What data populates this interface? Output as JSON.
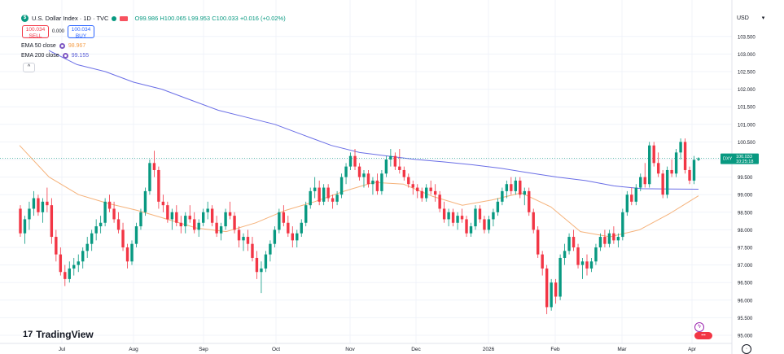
{
  "header": {
    "symbol_title": "U.S. Dollar Index · 1D · TVC",
    "open": "O99.986",
    "high": "H100.065",
    "low": "L99.953",
    "close": "C100.033",
    "change": "+0.016 (+0.02%)"
  },
  "trade": {
    "sell_price": "100.034",
    "sell_label": "SELL",
    "spread": "0.000",
    "buy_price": "100.034",
    "buy_label": "BUY"
  },
  "indicators": {
    "ema50_label": "EMA 50 close",
    "ema50_value": "98.967",
    "ema50_color": "#f5b27a",
    "ema200_label": "EMA 200 close",
    "ema200_value": "99.155",
    "ema200_color": "#6a6ee6"
  },
  "price_axis": {
    "currency": "USD",
    "last_symbol": "DXY",
    "last_price": "100.033",
    "countdown": "10:25:18"
  },
  "branding": {
    "logo_text": "TradingView"
  },
  "chart_data": {
    "type": "candlestick",
    "ylim": [
      94.85,
      104.0
    ],
    "y_ticks": [
      "95.000",
      "95.500",
      "96.000",
      "96.500",
      "97.000",
      "97.500",
      "98.000",
      "98.500",
      "99.000",
      "99.500",
      "100.000",
      "100.500",
      "101.000",
      "101.500",
      "102.000",
      "102.500",
      "103.000",
      "103.500"
    ],
    "x_ticks": [
      "Jul",
      "Aug",
      "Sep",
      "Oct",
      "Nov",
      "Dec",
      "2026",
      "Feb",
      "Mar",
      "Apr"
    ],
    "up_color": "#089981",
    "down_color": "#f23645",
    "candles": [
      [
        98.6,
        98.7,
        97.8,
        97.9
      ],
      [
        97.9,
        98.4,
        97.6,
        98.3
      ],
      [
        98.3,
        98.8,
        98.0,
        98.6
      ],
      [
        98.6,
        99.1,
        98.4,
        98.9
      ],
      [
        98.9,
        99.0,
        98.4,
        98.5
      ],
      [
        98.5,
        98.9,
        98.2,
        98.8
      ],
      [
        98.8,
        99.2,
        98.5,
        98.7
      ],
      [
        98.7,
        98.9,
        97.6,
        97.8
      ],
      [
        97.8,
        98.0,
        97.1,
        97.3
      ],
      [
        97.3,
        97.5,
        96.7,
        96.8
      ],
      [
        96.8,
        97.0,
        96.4,
        96.6
      ],
      [
        96.6,
        97.1,
        96.5,
        96.9
      ],
      [
        96.9,
        97.2,
        96.7,
        97.0
      ],
      [
        97.0,
        97.3,
        96.8,
        97.1
      ],
      [
        97.1,
        97.5,
        96.9,
        97.4
      ],
      [
        97.4,
        97.8,
        97.2,
        97.6
      ],
      [
        97.6,
        98.0,
        97.4,
        97.9
      ],
      [
        97.9,
        98.3,
        97.7,
        98.1
      ],
      [
        98.1,
        98.4,
        97.9,
        98.2
      ],
      [
        98.2,
        98.9,
        98.1,
        98.8
      ],
      [
        98.8,
        99.0,
        98.5,
        98.6
      ],
      [
        98.6,
        98.8,
        98.2,
        98.3
      ],
      [
        98.3,
        98.5,
        97.9,
        98.0
      ],
      [
        98.0,
        98.2,
        97.4,
        97.5
      ],
      [
        97.5,
        97.6,
        96.9,
        97.1
      ],
      [
        97.1,
        97.7,
        97.0,
        97.6
      ],
      [
        97.6,
        98.2,
        97.5,
        98.1
      ],
      [
        98.1,
        98.6,
        98.0,
        98.5
      ],
      [
        98.5,
        99.2,
        98.4,
        99.1
      ],
      [
        99.1,
        100.0,
        99.0,
        99.9
      ],
      [
        99.9,
        100.25,
        99.5,
        99.7
      ],
      [
        99.7,
        99.8,
        98.6,
        98.8
      ],
      [
        98.8,
        99.0,
        98.5,
        98.7
      ],
      [
        98.7,
        98.8,
        98.2,
        98.3
      ],
      [
        98.3,
        98.6,
        98.0,
        98.5
      ],
      [
        98.5,
        98.7,
        98.1,
        98.2
      ],
      [
        98.2,
        98.4,
        97.9,
        98.1
      ],
      [
        98.1,
        98.5,
        97.9,
        98.4
      ],
      [
        98.4,
        98.7,
        98.2,
        98.3
      ],
      [
        98.3,
        98.5,
        97.9,
        98.0
      ],
      [
        98.0,
        98.3,
        97.8,
        98.2
      ],
      [
        98.2,
        98.6,
        98.1,
        98.5
      ],
      [
        98.5,
        98.8,
        98.3,
        98.6
      ],
      [
        98.6,
        98.7,
        98.1,
        98.2
      ],
      [
        98.2,
        98.4,
        97.8,
        97.9
      ],
      [
        97.9,
        98.2,
        97.7,
        98.1
      ],
      [
        98.1,
        98.6,
        98.0,
        98.5
      ],
      [
        98.5,
        98.8,
        98.3,
        98.4
      ],
      [
        98.4,
        98.5,
        97.9,
        98.0
      ],
      [
        98.0,
        98.1,
        97.5,
        97.7
      ],
      [
        97.7,
        97.9,
        97.4,
        97.8
      ],
      [
        97.8,
        98.0,
        97.4,
        97.6
      ],
      [
        97.6,
        97.8,
        97.1,
        97.2
      ],
      [
        97.2,
        97.4,
        96.6,
        96.8
      ],
      [
        96.8,
        97.1,
        96.2,
        96.9
      ],
      [
        96.9,
        97.4,
        96.8,
        97.3
      ],
      [
        97.3,
        97.7,
        97.1,
        97.6
      ],
      [
        97.6,
        98.1,
        97.5,
        98.0
      ],
      [
        98.0,
        98.6,
        97.9,
        98.5
      ],
      [
        98.5,
        98.7,
        98.1,
        98.2
      ],
      [
        98.2,
        98.4,
        97.8,
        97.9
      ],
      [
        97.9,
        98.1,
        97.5,
        97.7
      ],
      [
        97.7,
        98.0,
        97.5,
        97.9
      ],
      [
        97.9,
        98.3,
        97.8,
        98.2
      ],
      [
        98.2,
        98.8,
        98.1,
        98.7
      ],
      [
        98.7,
        99.2,
        98.6,
        99.1
      ],
      [
        99.1,
        99.5,
        98.9,
        99.2
      ],
      [
        99.2,
        99.4,
        98.7,
        98.8
      ],
      [
        98.8,
        99.3,
        98.7,
        99.2
      ],
      [
        99.2,
        99.3,
        98.8,
        98.9
      ],
      [
        98.9,
        99.0,
        98.6,
        98.8
      ],
      [
        98.8,
        99.1,
        98.7,
        99.0
      ],
      [
        99.0,
        99.6,
        98.9,
        99.5
      ],
      [
        99.5,
        99.9,
        99.3,
        99.8
      ],
      [
        99.8,
        100.2,
        99.7,
        100.1
      ],
      [
        100.1,
        100.3,
        99.7,
        99.8
      ],
      [
        99.8,
        99.9,
        99.4,
        99.5
      ],
      [
        99.5,
        99.7,
        99.2,
        99.6
      ],
      [
        99.6,
        99.7,
        99.2,
        99.3
      ],
      [
        99.3,
        99.5,
        99.0,
        99.4
      ],
      [
        99.4,
        99.6,
        99.0,
        99.1
      ],
      [
        99.1,
        99.7,
        99.0,
        99.6
      ],
      [
        99.6,
        100.1,
        99.5,
        100.0
      ],
      [
        100.0,
        100.3,
        99.8,
        100.1
      ],
      [
        100.1,
        100.2,
        99.7,
        99.8
      ],
      [
        99.8,
        100.3,
        99.6,
        99.7
      ],
      [
        99.7,
        99.8,
        99.4,
        99.5
      ],
      [
        99.5,
        99.6,
        99.2,
        99.3
      ],
      [
        99.3,
        99.4,
        99.0,
        99.2
      ],
      [
        99.2,
        99.3,
        98.9,
        99.1
      ],
      [
        99.1,
        99.2,
        98.8,
        98.9
      ],
      [
        98.9,
        99.3,
        98.8,
        99.2
      ],
      [
        99.2,
        99.4,
        99.0,
        99.1
      ],
      [
        99.1,
        99.3,
        98.8,
        99.0
      ],
      [
        99.0,
        99.1,
        98.5,
        98.6
      ],
      [
        98.6,
        98.8,
        98.2,
        98.3
      ],
      [
        98.3,
        98.6,
        98.1,
        98.5
      ],
      [
        98.5,
        98.6,
        98.1,
        98.2
      ],
      [
        98.2,
        98.5,
        98.0,
        98.4
      ],
      [
        98.4,
        98.6,
        98.2,
        98.3
      ],
      [
        98.3,
        98.4,
        97.8,
        97.9
      ],
      [
        97.9,
        98.2,
        97.8,
        98.1
      ],
      [
        98.1,
        98.7,
        98.0,
        98.6
      ],
      [
        98.6,
        98.7,
        98.2,
        98.3
      ],
      [
        98.3,
        98.4,
        97.9,
        98.0
      ],
      [
        98.0,
        98.4,
        97.9,
        98.3
      ],
      [
        98.3,
        98.6,
        98.1,
        98.5
      ],
      [
        98.5,
        98.9,
        98.4,
        98.8
      ],
      [
        98.8,
        99.2,
        98.7,
        99.1
      ],
      [
        99.1,
        99.4,
        98.9,
        99.3
      ],
      [
        99.3,
        99.5,
        99.0,
        99.1
      ],
      [
        99.1,
        99.5,
        99.0,
        99.4
      ],
      [
        99.4,
        99.5,
        98.9,
        99.0
      ],
      [
        99.0,
        99.2,
        98.7,
        99.1
      ],
      [
        99.1,
        99.2,
        98.4,
        98.5
      ],
      [
        98.5,
        98.6,
        97.9,
        98.0
      ],
      [
        98.0,
        98.1,
        97.2,
        97.3
      ],
      [
        97.3,
        97.4,
        96.7,
        96.9
      ],
      [
        96.9,
        97.0,
        95.6,
        95.8
      ],
      [
        95.8,
        96.6,
        95.7,
        96.5
      ],
      [
        96.5,
        96.6,
        95.9,
        96.1
      ],
      [
        96.1,
        97.3,
        96.0,
        97.2
      ],
      [
        97.2,
        97.6,
        97.0,
        97.4
      ],
      [
        97.4,
        97.9,
        97.3,
        97.8
      ],
      [
        97.8,
        98.0,
        97.4,
        97.5
      ],
      [
        97.5,
        97.6,
        96.9,
        97.0
      ],
      [
        97.0,
        97.2,
        96.6,
        97.1
      ],
      [
        97.1,
        97.3,
        96.7,
        96.9
      ],
      [
        96.9,
        97.2,
        96.8,
        97.1
      ],
      [
        97.1,
        97.6,
        97.0,
        97.5
      ],
      [
        97.5,
        97.9,
        97.4,
        97.8
      ],
      [
        97.8,
        98.0,
        97.5,
        97.6
      ],
      [
        97.6,
        98.0,
        97.5,
        97.9
      ],
      [
        97.9,
        98.1,
        97.6,
        97.7
      ],
      [
        97.7,
        97.9,
        97.5,
        97.8
      ],
      [
        97.8,
        98.6,
        97.7,
        98.5
      ],
      [
        98.5,
        99.1,
        98.4,
        99.0
      ],
      [
        99.0,
        99.2,
        98.7,
        98.8
      ],
      [
        98.8,
        99.3,
        98.7,
        99.2
      ],
      [
        99.2,
        99.6,
        99.1,
        99.5
      ],
      [
        99.5,
        99.9,
        99.2,
        99.3
      ],
      [
        99.3,
        100.5,
        99.2,
        100.4
      ],
      [
        100.4,
        100.5,
        99.8,
        99.9
      ],
      [
        99.9,
        100.2,
        99.5,
        99.6
      ],
      [
        99.6,
        99.7,
        98.9,
        99.0
      ],
      [
        99.0,
        99.8,
        98.9,
        99.7
      ],
      [
        99.7,
        100.0,
        99.5,
        99.6
      ],
      [
        99.6,
        100.3,
        99.5,
        100.2
      ],
      [
        100.2,
        100.6,
        100.0,
        100.5
      ],
      [
        100.5,
        100.6,
        99.6,
        99.7
      ],
      [
        99.7,
        99.8,
        99.3,
        99.4
      ],
      [
        99.4,
        100.1,
        99.3,
        99.99
      ],
      [
        99.99,
        100.065,
        99.953,
        100.033
      ]
    ],
    "ema200": [
      103.1,
      102.7,
      102.5,
      102.2,
      102.0,
      101.7,
      101.4,
      101.2,
      101.0,
      100.7,
      100.4,
      100.2,
      100.1,
      100.0,
      99.93,
      99.85,
      99.75,
      99.62,
      99.5,
      99.4,
      99.25,
      99.17,
      99.16,
      99.155
    ],
    "ema50": [
      100.4,
      99.5,
      99.0,
      98.75,
      98.55,
      98.3,
      98.05,
      97.95,
      98.2,
      98.55,
      98.8,
      99.1,
      99.35,
      99.3,
      98.95,
      98.7,
      98.85,
      99.05,
      98.65,
      97.95,
      97.8,
      98.0,
      98.45,
      98.967
    ]
  }
}
